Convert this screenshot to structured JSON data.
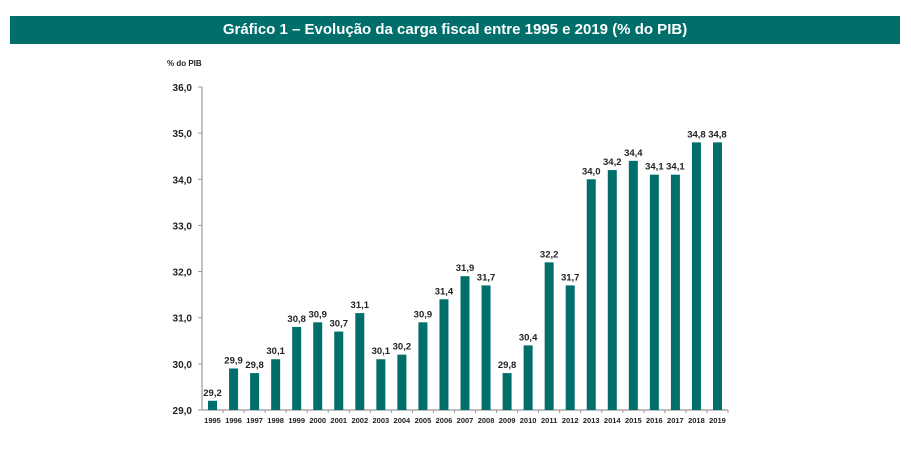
{
  "chart_data": {
    "type": "bar",
    "title": "Gráfico 1 – Evolução da carga fiscal entre 1995 e 2019 (% do PIB)",
    "xlabel": "",
    "ylabel": "% do PIB",
    "ylim": [
      29.0,
      36.0
    ],
    "yticks": [
      "29,0",
      "30,0",
      "31,0",
      "32,0",
      "33,0",
      "34,0",
      "35,0",
      "36,0"
    ],
    "grid": false,
    "legend": "none",
    "bar_color": "#006f6b",
    "categories": [
      "1995",
      "1996",
      "1997",
      "1998",
      "1999",
      "2000",
      "2001",
      "2002",
      "2003",
      "2004",
      "2005",
      "2006",
      "2007",
      "2008",
      "2009",
      "2010",
      "2011",
      "2012",
      "2013",
      "2014",
      "2015",
      "2016",
      "2017",
      "2018",
      "2019"
    ],
    "values": [
      29.2,
      29.9,
      29.8,
      30.1,
      30.8,
      30.9,
      30.7,
      31.1,
      30.1,
      30.2,
      30.9,
      31.4,
      31.9,
      31.7,
      29.8,
      30.4,
      32.2,
      31.7,
      34.0,
      34.2,
      34.4,
      34.1,
      34.1,
      34.8,
      34.8
    ],
    "data_labels": [
      "29,2",
      "29,9",
      "29,8",
      "30,1",
      "30,8",
      "30,9",
      "30,7",
      "31,1",
      "30,1",
      "30,2",
      "30,9",
      "31,4",
      "31,9",
      "31,7",
      "29,8",
      "30,4",
      "32,2",
      "31,7",
      "34,0",
      "34,2",
      "34,4",
      "34,1",
      "34,1",
      "34,8",
      "34,8"
    ]
  }
}
